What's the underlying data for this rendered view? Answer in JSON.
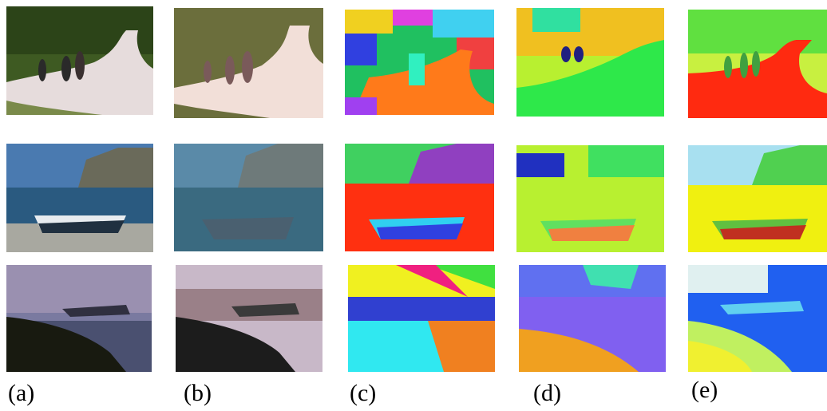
{
  "captions": {
    "a": "(a)",
    "b": "(b)",
    "c": "(c)",
    "d": "(d)",
    "e": "(e)"
  },
  "rows": [
    {
      "subject": "cyclists on a path",
      "colors": {
        "photo_foliage": "#3e5a22",
        "photo_path": "#e6dcdc",
        "photo_grass": "#7a8a4a",
        "seg_background": "#6b6e3c",
        "seg_path": "#f2dfd8",
        "seg_people": "#7a5a5a",
        "c_main": "#ff7a1a",
        "d_main": "#2ee84a",
        "e_main": "#ff2a10"
      }
    },
    {
      "subject": "boat on a beach",
      "colors": {
        "photo_sky": "#4a7ab0",
        "photo_sea": "#2a5a80",
        "photo_cliff": "#6a6a5a",
        "seg_sky": "#5a8aa8",
        "seg_sea": "#3a6a80",
        "seg_cliff": "#6e7a7a",
        "seg_boat": "#4a6070",
        "c_main": "#ff3010",
        "d_main": "#b8f030",
        "e_main": "#f0f010"
      }
    },
    {
      "subject": "helicopter at dusk",
      "colors": {
        "photo_sky": "#7a7aa0",
        "photo_sea": "#4a5070",
        "photo_ground": "#181a10",
        "seg_sky": "#c8b8c8",
        "seg_cloud": "#9a8088",
        "seg_ground": "#1c1c1c",
        "c_main": "#30e8f0",
        "d_main": "#f0a020",
        "e_main": "#2060f0"
      }
    }
  ]
}
